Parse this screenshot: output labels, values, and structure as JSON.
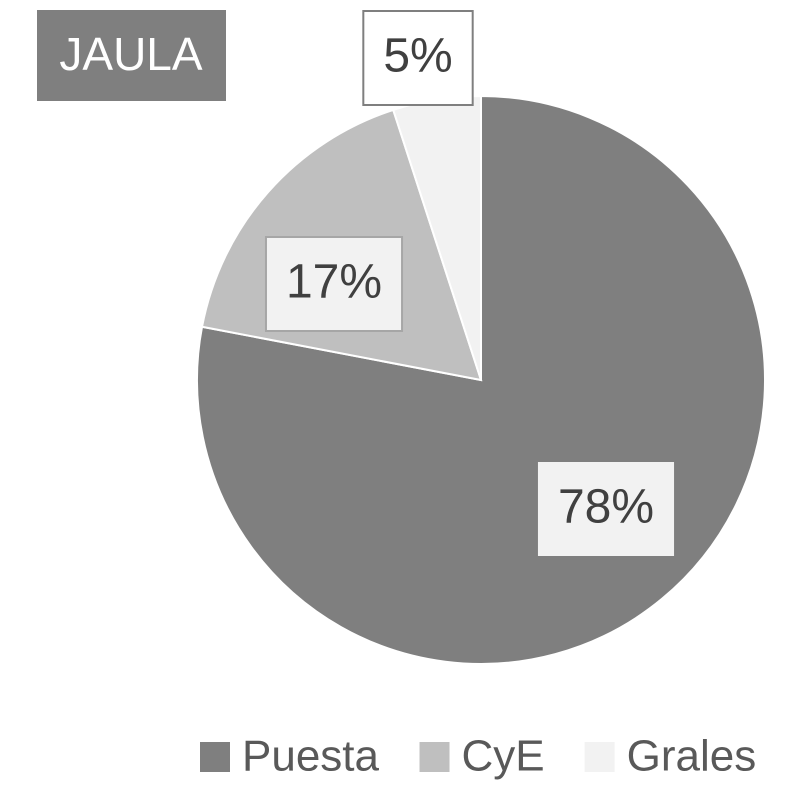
{
  "chart_data": {
    "type": "pie",
    "title": "JAULA",
    "categories": [
      "Puesta",
      "CyE",
      "Grales"
    ],
    "values": [
      78,
      17,
      5
    ],
    "value_labels": [
      "78%",
      "17%",
      "5%"
    ],
    "colors": [
      "#7f7f7f",
      "#bfbfbf",
      "#f2f2f2"
    ],
    "legend": "bottom"
  }
}
